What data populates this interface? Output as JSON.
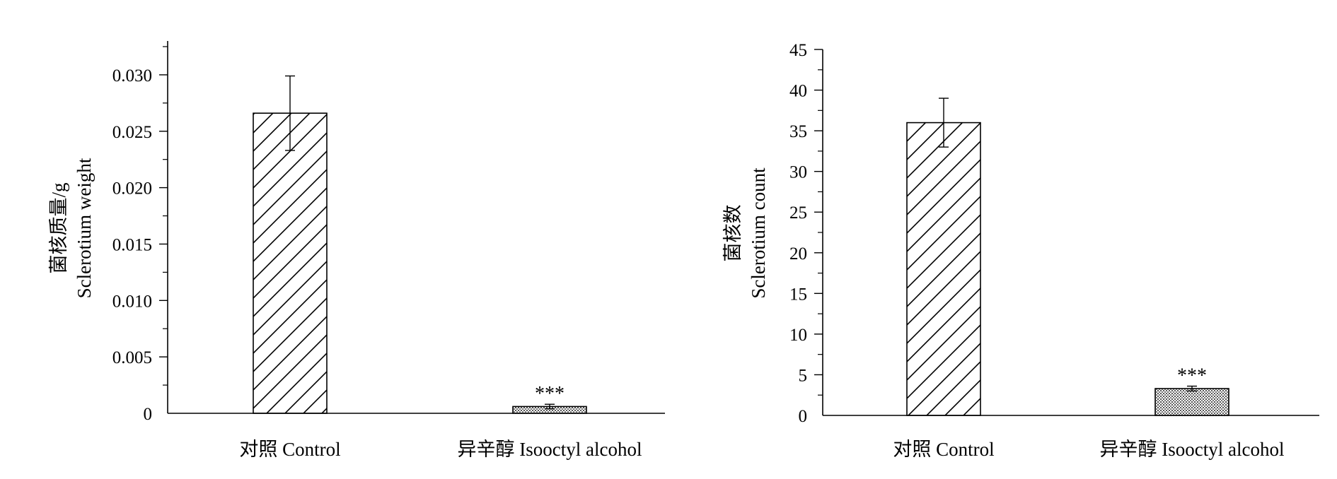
{
  "chart_data": [
    {
      "type": "bar",
      "categories": [
        "对照 Control",
        "异辛醇 Isooctyl alcohol"
      ],
      "values": [
        0.0266,
        0.0006
      ],
      "errors": [
        0.0033,
        0.0002
      ],
      "significance": [
        "",
        "***"
      ],
      "patterns": [
        "diagonal-hatch",
        "dense-dots"
      ],
      "title": "",
      "xlabel": "",
      "ylabel": [
        "菌核质量/g",
        "Sclerotium weight"
      ],
      "ylim": [
        0,
        0.033
      ],
      "yticks": [
        0,
        0.005,
        0.01,
        0.015,
        0.02,
        0.025,
        0.03
      ],
      "ytick_labels": [
        "0",
        "0.005",
        "0.010",
        "0.015",
        "0.020",
        "0.025",
        "0.030"
      ],
      "grid": false,
      "legend": "none"
    },
    {
      "type": "bar",
      "categories": [
        "对照 Control",
        "异辛醇 Isooctyl alcohol"
      ],
      "values": [
        36.0,
        3.3
      ],
      "errors": [
        3.0,
        0.3
      ],
      "significance": [
        "",
        "***"
      ],
      "patterns": [
        "diagonal-hatch",
        "dense-dots"
      ],
      "title": "",
      "xlabel": "",
      "ylabel": [
        "菌核数",
        "Sclerotium count"
      ],
      "ylim": [
        0,
        45
      ],
      "yticks": [
        0,
        5,
        10,
        15,
        20,
        25,
        30,
        35,
        40,
        45
      ],
      "ytick_labels": [
        "0",
        "5",
        "10",
        "15",
        "20",
        "25",
        "30",
        "35",
        "40",
        "45"
      ],
      "grid": false,
      "legend": "none"
    }
  ]
}
